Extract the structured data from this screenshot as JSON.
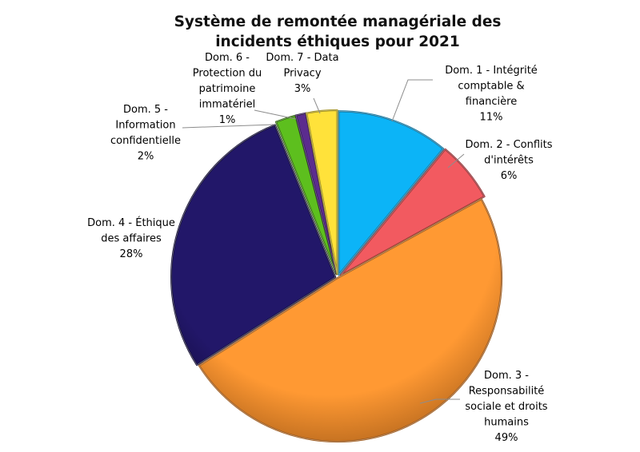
{
  "chart_data": {
    "type": "pie",
    "title_lines": [
      "Système de remontée managériale des",
      "incidents éthiques pour 2021"
    ],
    "slices": [
      {
        "label_lines": [
          "Dom. 1 - Intégrité",
          "comptable &",
          "financière"
        ],
        "value_label": "11%",
        "value": 11,
        "color": "#0CB4F7",
        "edge": "#0a6e98"
      },
      {
        "label_lines": [
          "Dom. 2 - Conflits",
          "d'intérêts"
        ],
        "value_label": "6%",
        "value": 6,
        "color": "#F25A60",
        "edge": "#8f2c30"
      },
      {
        "label_lines": [
          "Dom. 3 -",
          "Responsabilité",
          "sociale et droits",
          "humains"
        ],
        "value_label": "49%",
        "value": 49,
        "color": "#FF9933",
        "edge": "#9a5414"
      },
      {
        "label_lines": [
          "Dom. 4 - Éthique",
          "des affaires"
        ],
        "value_label": "28%",
        "value": 28,
        "color": "#221769",
        "edge": "#0d0830"
      },
      {
        "label_lines": [
          "Dom. 5 -",
          "Information",
          "confidentielle"
        ],
        "value_label": "2%",
        "value": 2,
        "color": "#5DBF1E",
        "edge": "#2c6608"
      },
      {
        "label_lines": [
          "Dom. 6 -",
          "Protection du",
          "patrimoine",
          "immatériel"
        ],
        "value_label": "1%",
        "value": 1,
        "color": "#5B2C8E",
        "edge": "#2a0f4a"
      },
      {
        "label_lines": [
          "Dom. 7 - Data",
          "Privacy"
        ],
        "value_label": "3%",
        "value": 3,
        "color": "#FFE23A",
        "edge": "#9c8a12"
      }
    ],
    "legend": "none",
    "start": "12 o'clock, clockwise"
  }
}
